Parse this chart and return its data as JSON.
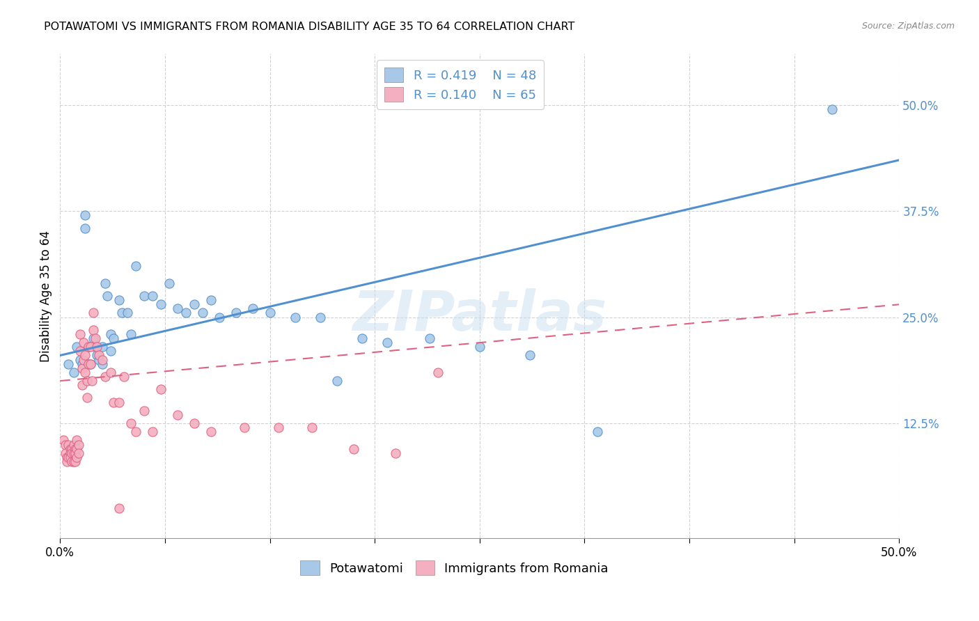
{
  "title": "POTAWATOMI VS IMMIGRANTS FROM ROMANIA DISABILITY AGE 35 TO 64 CORRELATION CHART",
  "source": "Source: ZipAtlas.com",
  "ylabel": "Disability Age 35 to 64",
  "legend_label1": "Potawatomi",
  "legend_label2": "Immigrants from Romania",
  "R1": 0.419,
  "N1": 48,
  "R2": 0.14,
  "N2": 65,
  "xlim": [
    0.0,
    0.5
  ],
  "ylim": [
    -0.01,
    0.56
  ],
  "yticks": [
    0.125,
    0.25,
    0.375,
    0.5
  ],
  "ytick_labels": [
    "12.5%",
    "25.0%",
    "37.5%",
    "50.0%"
  ],
  "xticks": [
    0.0,
    0.0625,
    0.125,
    0.1875,
    0.25,
    0.3125,
    0.375,
    0.4375,
    0.5
  ],
  "xtick_labels": [
    "0.0%",
    "",
    "",
    "",
    "",
    "",
    "",
    "",
    "50.0%"
  ],
  "color_blue": "#a8c8e8",
  "color_pink": "#f4afc0",
  "line_blue": "#5090d0",
  "line_pink": "#e06080",
  "watermark": "ZIPatlas",
  "blue_line_start_y": 0.205,
  "blue_line_end_y": 0.435,
  "pink_line_start_y": 0.175,
  "pink_line_end_y": 0.265,
  "blue_points_x": [
    0.005,
    0.008,
    0.01,
    0.012,
    0.013,
    0.015,
    0.015,
    0.017,
    0.018,
    0.02,
    0.021,
    0.022,
    0.023,
    0.025,
    0.025,
    0.027,
    0.028,
    0.03,
    0.03,
    0.032,
    0.035,
    0.037,
    0.04,
    0.042,
    0.045,
    0.05,
    0.055,
    0.06,
    0.065,
    0.07,
    0.075,
    0.08,
    0.085,
    0.09,
    0.095,
    0.105,
    0.115,
    0.125,
    0.14,
    0.155,
    0.165,
    0.18,
    0.195,
    0.22,
    0.25,
    0.28,
    0.32,
    0.46
  ],
  "blue_points_y": [
    0.195,
    0.185,
    0.215,
    0.2,
    0.195,
    0.37,
    0.355,
    0.215,
    0.195,
    0.225,
    0.215,
    0.205,
    0.2,
    0.215,
    0.195,
    0.29,
    0.275,
    0.23,
    0.21,
    0.225,
    0.27,
    0.255,
    0.255,
    0.23,
    0.31,
    0.275,
    0.275,
    0.265,
    0.29,
    0.26,
    0.255,
    0.265,
    0.255,
    0.27,
    0.25,
    0.255,
    0.26,
    0.255,
    0.25,
    0.25,
    0.175,
    0.225,
    0.22,
    0.225,
    0.215,
    0.205,
    0.115,
    0.495
  ],
  "pink_points_x": [
    0.002,
    0.003,
    0.003,
    0.004,
    0.004,
    0.005,
    0.005,
    0.006,
    0.006,
    0.006,
    0.007,
    0.007,
    0.007,
    0.008,
    0.008,
    0.008,
    0.009,
    0.009,
    0.009,
    0.01,
    0.01,
    0.01,
    0.011,
    0.011,
    0.012,
    0.012,
    0.013,
    0.013,
    0.014,
    0.014,
    0.015,
    0.015,
    0.016,
    0.016,
    0.017,
    0.017,
    0.018,
    0.018,
    0.019,
    0.02,
    0.02,
    0.021,
    0.022,
    0.023,
    0.025,
    0.027,
    0.03,
    0.032,
    0.035,
    0.038,
    0.042,
    0.045,
    0.05,
    0.055,
    0.06,
    0.07,
    0.08,
    0.09,
    0.11,
    0.13,
    0.15,
    0.175,
    0.2,
    0.225,
    0.035
  ],
  "pink_points_y": [
    0.105,
    0.1,
    0.09,
    0.085,
    0.08,
    0.1,
    0.085,
    0.095,
    0.09,
    0.085,
    0.095,
    0.09,
    0.08,
    0.1,
    0.09,
    0.08,
    0.095,
    0.09,
    0.08,
    0.105,
    0.095,
    0.085,
    0.1,
    0.09,
    0.23,
    0.21,
    0.19,
    0.17,
    0.22,
    0.2,
    0.205,
    0.185,
    0.175,
    0.155,
    0.215,
    0.195,
    0.215,
    0.195,
    0.175,
    0.255,
    0.235,
    0.225,
    0.215,
    0.205,
    0.2,
    0.18,
    0.185,
    0.15,
    0.15,
    0.18,
    0.125,
    0.115,
    0.14,
    0.115,
    0.165,
    0.135,
    0.125,
    0.115,
    0.12,
    0.12,
    0.12,
    0.095,
    0.09,
    0.185,
    0.025
  ]
}
